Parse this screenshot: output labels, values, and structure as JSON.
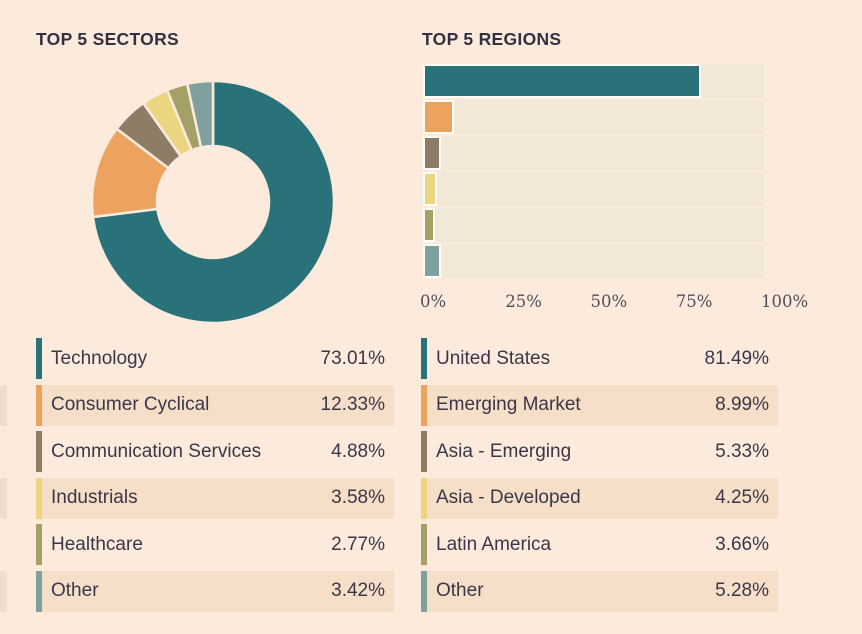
{
  "ui": {
    "page_background": "#fcebdd",
    "shaded_row_color": "#f5dfc9",
    "text_color": "#3b3748",
    "title_color": "#34303f",
    "axis_text_color": "#504d59",
    "bar_track_color": "#f2e8d8",
    "bar_border_color": "#fffdf6",
    "cropped_left_sliver_color": "#f0ddcc"
  },
  "chart_data": [
    {
      "type": "pie",
      "subtype": "donut",
      "title": "TOP 5 SECTORS",
      "categories": [
        "Technology",
        "Consumer Cyclical",
        "Communication Services",
        "Industrials",
        "Healthcare",
        "Other"
      ],
      "values": [
        73.01,
        12.33,
        4.88,
        3.58,
        2.77,
        3.42
      ],
      "display_values": [
        "73.01%",
        "12.33%",
        "4.88%",
        "3.58%",
        "2.77%",
        "3.42%"
      ],
      "colors": [
        "#2a727a",
        "#eca35f",
        "#8d7d67",
        "#ecd581",
        "#a4a066",
        "#80a09f"
      ],
      "start_angle_deg": 0,
      "direction": "clockwise",
      "legend_position": "bottom"
    },
    {
      "type": "bar",
      "orientation": "horizontal",
      "title": "TOP 5 REGIONS",
      "categories": [
        "United States",
        "Emerging Market",
        "Asia - Emerging",
        "Asia - Developed",
        "Latin America",
        "Other"
      ],
      "values": [
        81.49,
        8.99,
        5.33,
        4.25,
        3.66,
        5.28
      ],
      "display_values": [
        "81.49%",
        "8.99%",
        "5.33%",
        "4.25%",
        "3.66%",
        "5.28%"
      ],
      "colors": [
        "#2a727a",
        "#eca35f",
        "#8d7d67",
        "#ecd581",
        "#a4a066",
        "#80a09f"
      ],
      "xlim": [
        0,
        100
      ],
      "x_tick_values": [
        0,
        25,
        50,
        75,
        100
      ],
      "x_tick_labels": [
        "0%",
        "25%",
        "50%",
        "75%",
        "100%"
      ],
      "grid": false,
      "legend_position": "bottom"
    }
  ]
}
